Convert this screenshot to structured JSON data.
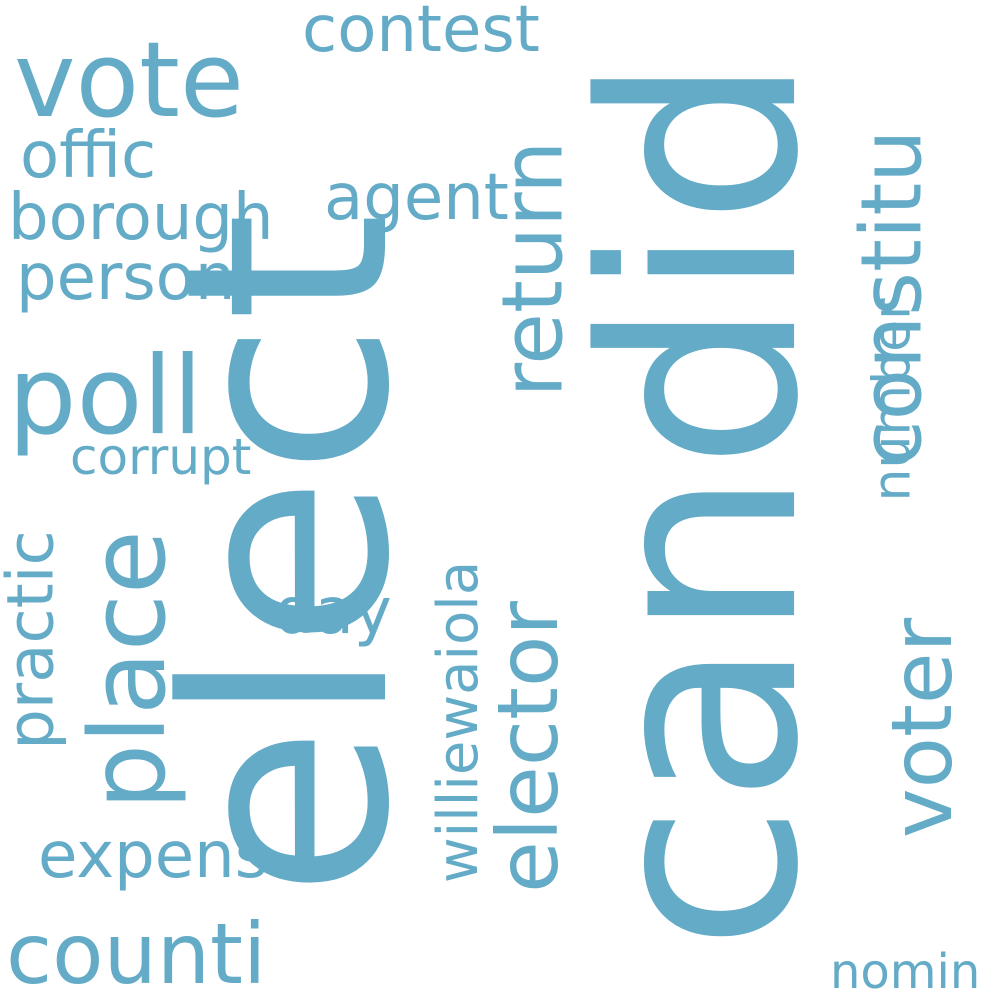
{
  "word_color": "#64abc7",
  "background_color": "#ffffff",
  "words": {
    "elect": "elect",
    "candid": "candid",
    "vote": "vote",
    "contest": "contest",
    "offic": "offic",
    "agent": "agent",
    "borough": "borough",
    "person": "person",
    "poll": "poll",
    "corrupt": "corrupt",
    "place": "place",
    "practic": "practic",
    "day": "day",
    "expens": "expens",
    "counti": "counti",
    "return": "return",
    "elector": "elector",
    "williewaiola": "williewaiola",
    "constitu": "constitu",
    "voter": "voter",
    "number": "number",
    "nomin": "nomin"
  }
}
